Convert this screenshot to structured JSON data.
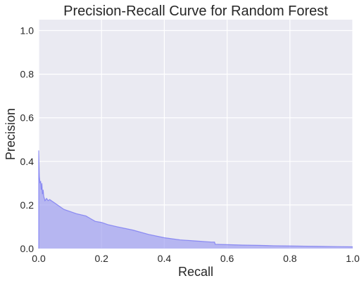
{
  "chart_data": {
    "type": "area",
    "title": "Precision-Recall Curve for Random Forest",
    "xlabel": "Recall",
    "ylabel": "Precision",
    "xlim": [
      0.0,
      1.0
    ],
    "ylim": [
      0.0,
      1.05
    ],
    "xticks": [
      0.0,
      0.2,
      0.4,
      0.6,
      0.8,
      1.0
    ],
    "xtick_labels": [
      "0.0",
      "0.2",
      "0.4",
      "0.6",
      "0.8",
      "1.0"
    ],
    "yticks": [
      0.0,
      0.2,
      0.4,
      0.6,
      0.8,
      1.0
    ],
    "ytick_labels": [
      "0.0",
      "0.2",
      "0.4",
      "0.6",
      "0.8",
      "1.0"
    ],
    "grid": true,
    "colors": {
      "plot_background": "#eaeaf2",
      "grid": "#ffffff",
      "fill": "#9a9af0",
      "line": "#6c6cf2",
      "text": "#262626"
    },
    "series": [
      {
        "recall": [
          0.0,
          0.0,
          0.002,
          0.004,
          0.006,
          0.008,
          0.01,
          0.012,
          0.014,
          0.016,
          0.02,
          0.025,
          0.03,
          0.035,
          0.04,
          0.05,
          0.06,
          0.07,
          0.08,
          0.09,
          0.1,
          0.12,
          0.15,
          0.18,
          0.2,
          0.22,
          0.25,
          0.3,
          0.35,
          0.4,
          0.45,
          0.5,
          0.55,
          0.56,
          0.562,
          0.6,
          0.65,
          0.7,
          0.75,
          0.8,
          0.85,
          0.9,
          0.95,
          1.0
        ],
        "precision": [
          0.0,
          0.45,
          0.33,
          0.3,
          0.31,
          0.27,
          0.3,
          0.25,
          0.27,
          0.24,
          0.22,
          0.23,
          0.22,
          0.225,
          0.22,
          0.21,
          0.2,
          0.19,
          0.18,
          0.175,
          0.17,
          0.16,
          0.15,
          0.125,
          0.12,
          0.11,
          0.1,
          0.085,
          0.065,
          0.05,
          0.04,
          0.035,
          0.03,
          0.03,
          0.02,
          0.018,
          0.016,
          0.015,
          0.013,
          0.012,
          0.011,
          0.01,
          0.009,
          0.008
        ]
      }
    ]
  }
}
